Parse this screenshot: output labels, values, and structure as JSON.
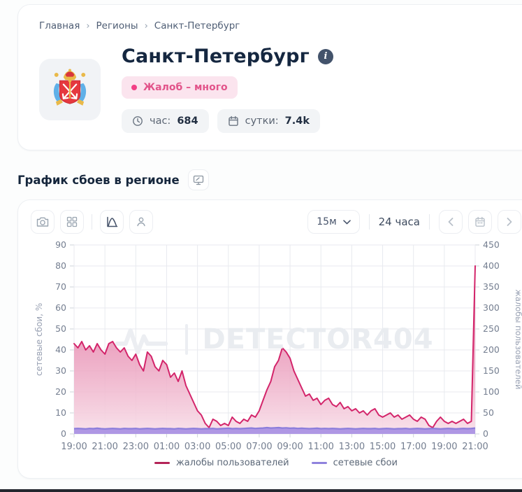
{
  "breadcrumb": {
    "separator": "›",
    "items": [
      {
        "label": "Главная"
      },
      {
        "label": "Регионы"
      },
      {
        "label": "Санкт-Петербург"
      }
    ]
  },
  "header": {
    "title": "Санкт-Петербург",
    "info_icon_glyph": "i",
    "status_badge": {
      "label": "Жалоб – много",
      "dot_color": "#f23f85",
      "bg": "#fbe4ee",
      "text_color": "#e2548a"
    },
    "stats": [
      {
        "icon": "clock-icon",
        "label": "час:",
        "value": "684"
      },
      {
        "icon": "calendar-icon",
        "label": "сутки:",
        "value": "7.4k"
      }
    ]
  },
  "section": {
    "title": "График сбоев в регионе"
  },
  "chart_controls": {
    "interval_select": {
      "value": "15м"
    },
    "range_label": "24 часа"
  },
  "watermark": {
    "text": "DETECTOR404"
  },
  "icons": {
    "header_action": "monitor-icon",
    "toolbar_left": [
      "camera-icon",
      "grid-icon",
      "area-chart-icon",
      "person-icon"
    ],
    "toolbar_right": [
      "chevron-down-icon",
      "chevron-left-icon",
      "calendar-icon",
      "chevron-right-icon"
    ],
    "watermark_logo": "pulse-icon"
  },
  "chart_data": {
    "type": "area",
    "title": "График сбоев в регионе",
    "interval_minutes": 15,
    "x_start": "19:00",
    "x_end": "21:00",
    "x_tick_labels": [
      "19:00",
      "21:00",
      "23:00",
      "01:00",
      "03:00",
      "05:00",
      "07:00",
      "09:00",
      "11:00",
      "13:00",
      "15:00",
      "17:00",
      "19:00",
      "21:00"
    ],
    "left_axis": {
      "label": "сетевые сбои, %",
      "min": 0,
      "max": 90,
      "step": 10
    },
    "right_axis": {
      "label": "жалобы пользователей",
      "min": 0,
      "max": 450,
      "step": 50
    },
    "grid": true,
    "legend_position": "bottom",
    "series": [
      {
        "name": "жалобы пользователей",
        "axis": "right",
        "color": "#d3246a",
        "legend_color": "#b42458",
        "fill_stops": [
          {
            "offset": 0,
            "color": "#d23a74",
            "opacity": 0.9
          },
          {
            "offset": 0.5,
            "color": "#e78bb0",
            "opacity": 0.8
          },
          {
            "offset": 1,
            "color": "#f8dfe9",
            "opacity": 0.9
          }
        ],
        "values": [
          215,
          205,
          220,
          200,
          210,
          195,
          215,
          200,
          190,
          215,
          220,
          205,
          195,
          205,
          185,
          175,
          190,
          165,
          150,
          195,
          185,
          160,
          150,
          175,
          165,
          135,
          145,
          125,
          150,
          115,
          95,
          75,
          55,
          45,
          25,
          15,
          35,
          30,
          20,
          25,
          20,
          40,
          30,
          25,
          35,
          30,
          45,
          40,
          55,
          80,
          105,
          125,
          160,
          175,
          205,
          195,
          180,
          150,
          130,
          110,
          90,
          95,
          80,
          85,
          70,
          80,
          85,
          70,
          65,
          75,
          60,
          65,
          55,
          60,
          50,
          55,
          45,
          55,
          60,
          45,
          40,
          45,
          50,
          40,
          45,
          35,
          40,
          45,
          35,
          30,
          40,
          35,
          20,
          15,
          30,
          40,
          30,
          25,
          30,
          25,
          30,
          35,
          25,
          30,
          400
        ]
      },
      {
        "name": "сетевые сбои",
        "axis": "left",
        "color": "#8b7ddb",
        "legend_color": "#8f82dd",
        "fill": "#ab92e4",
        "fill_opacity": 0.95,
        "values": [
          2.5,
          2.6,
          2.5,
          2.4,
          2.6,
          2.5,
          2.7,
          2.5,
          2.4,
          2.5,
          2.6,
          2.5,
          2.4,
          2.6,
          2.5,
          2.5,
          2.6,
          2.4,
          2.5,
          2.6,
          2.5,
          2.4,
          2.5,
          2.6,
          2.5,
          2.5,
          2.4,
          2.6,
          2.5,
          2.4,
          2.5,
          2.6,
          2.5,
          2.4,
          2.5,
          2.5,
          2.6,
          2.4,
          2.5,
          2.6,
          2.7,
          2.5,
          2.6,
          2.5,
          2.6,
          2.7,
          2.8,
          2.6,
          2.7,
          2.8,
          3.0,
          2.8,
          2.9,
          3.0,
          2.8,
          2.9,
          2.7,
          2.8,
          2.6,
          2.7,
          2.6,
          2.5,
          2.6,
          2.7,
          2.5,
          2.6,
          2.5,
          2.6,
          2.5,
          2.4,
          2.5,
          2.6,
          2.5,
          2.4,
          2.5,
          2.6,
          2.5,
          2.5,
          2.6,
          2.4,
          2.5,
          2.6,
          2.5,
          2.4,
          2.5,
          2.5,
          2.6,
          2.4,
          2.5,
          2.6,
          2.5,
          2.4,
          2.5,
          2.6,
          2.5,
          2.4,
          2.5,
          2.6,
          2.5,
          2.4,
          2.5,
          2.6,
          2.5,
          2.6,
          2.8
        ]
      }
    ]
  }
}
